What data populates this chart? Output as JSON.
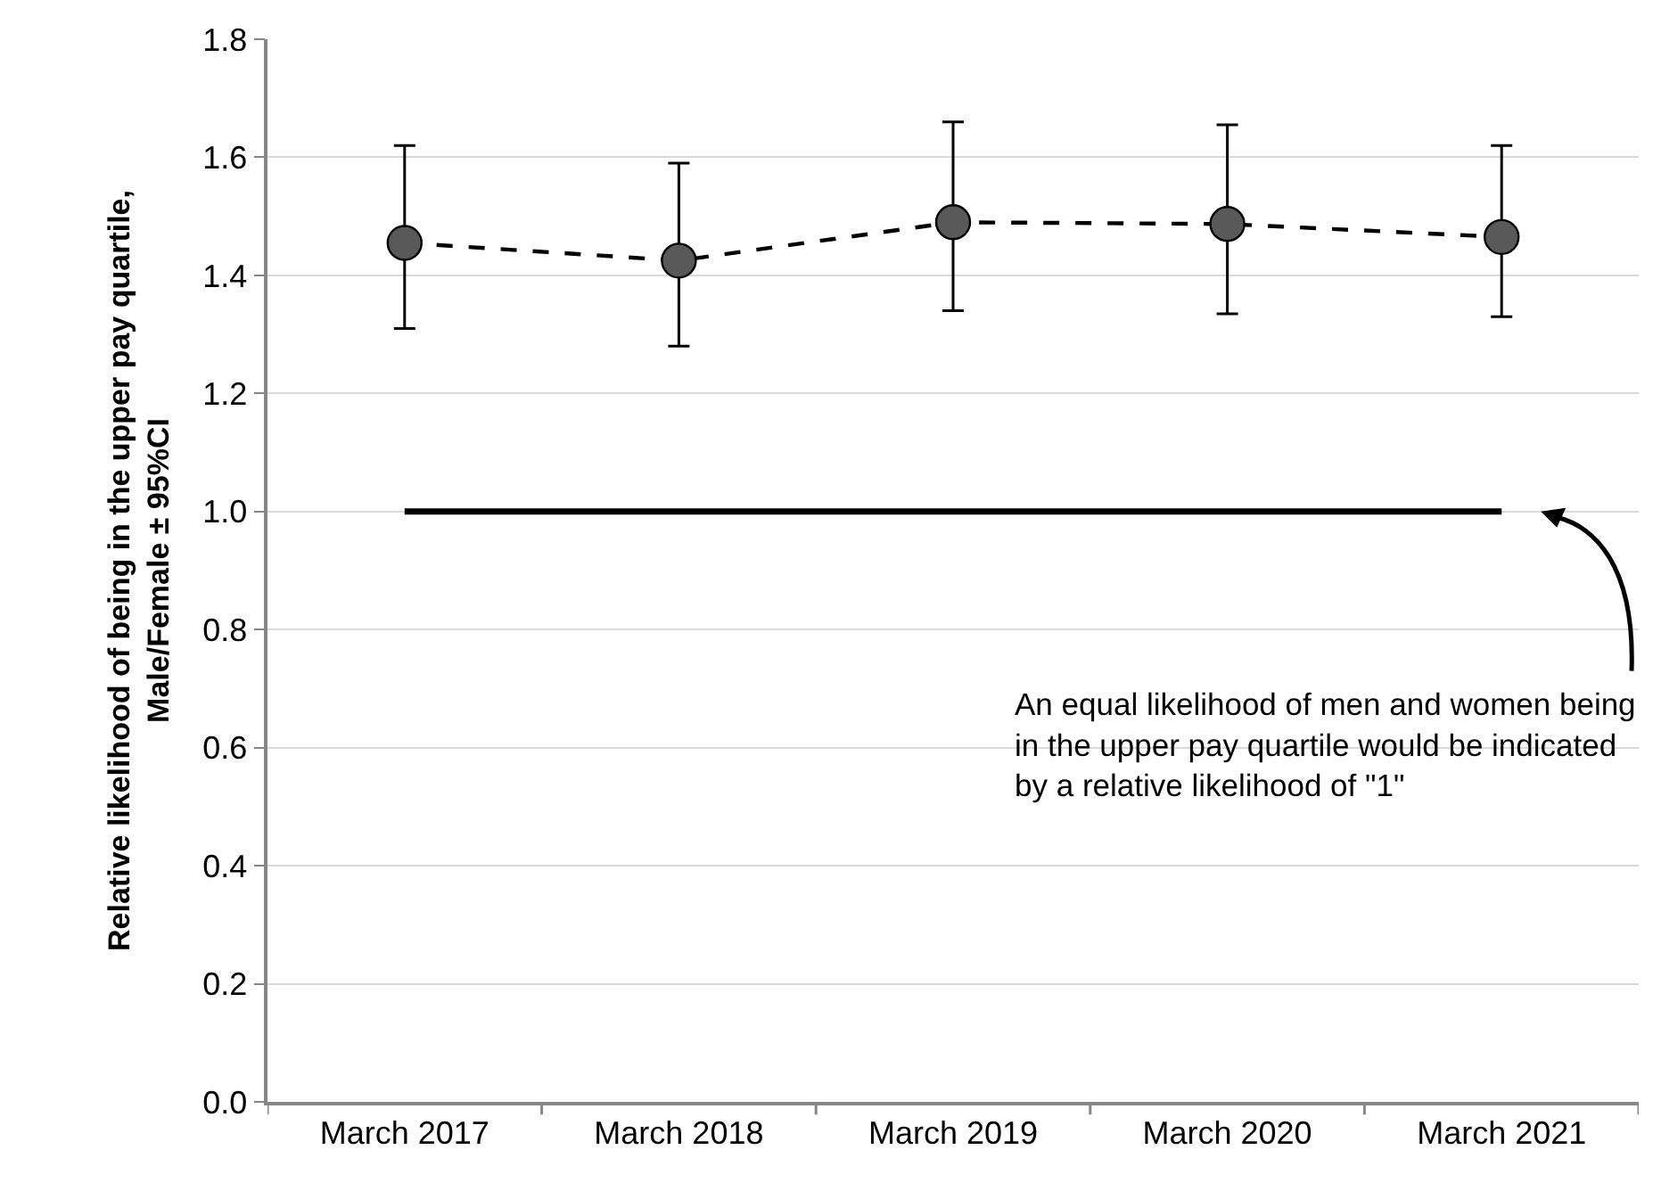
{
  "chart_data": {
    "type": "line",
    "ylabel": "Relative likelihood of being in the upper pay quartile, Male/Female ± 95%CI",
    "categories": [
      "March 2017",
      "March 2018",
      "March 2019",
      "March 2020",
      "March 2021"
    ],
    "values": [
      1.455,
      1.425,
      1.49,
      1.487,
      1.465
    ],
    "errors": [
      [
        1.31,
        1.62
      ],
      [
        1.28,
        1.59
      ],
      [
        1.34,
        1.66
      ],
      [
        1.335,
        1.655
      ],
      [
        1.33,
        1.62
      ]
    ],
    "color": "#595959",
    "marker": "circle",
    "line_style": "dashed",
    "ylim": [
      0,
      1.8
    ],
    "yticks": [
      {
        "value": 0,
        "label": "0.0"
      },
      0.2,
      0.4,
      0.6,
      0.8,
      {
        "value": 1,
        "label": "1.0"
      },
      1.2,
      1.4,
      1.6,
      1.8
    ],
    "grid": "y",
    "legend": false,
    "ref_lines": [
      {
        "axis": "y",
        "value": 1,
        "color": "#000000",
        "line_style": "solid"
      }
    ],
    "annotations": [
      "An equal likelihood of men and women being\nin the upper pay quartile would be indicated\nby a relative likelihood of \"1\""
    ]
  }
}
